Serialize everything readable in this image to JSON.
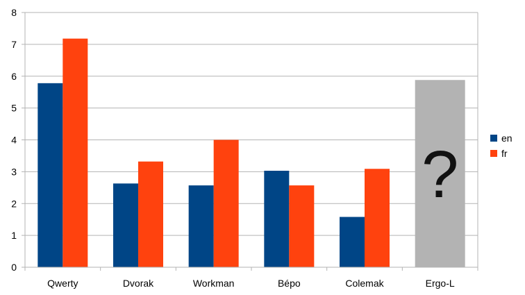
{
  "chart_data": {
    "type": "bar",
    "categories": [
      "Qwerty",
      "Dvorak",
      "Workman",
      "Bépo",
      "Colemak",
      "Ergo-L"
    ],
    "series": [
      {
        "name": "en",
        "color": "#004586",
        "values": [
          5.78,
          2.63,
          2.57,
          3.03,
          1.58,
          null
        ]
      },
      {
        "name": "fr",
        "color": "#ff420e",
        "values": [
          7.18,
          3.32,
          4.0,
          2.57,
          3.09,
          null
        ]
      }
    ],
    "unknown_bar": {
      "category": "Ergo-L",
      "value": 5.88,
      "color": "#b3b3b3",
      "label": "?"
    },
    "ylim": [
      0,
      8
    ],
    "yticks": [
      "0",
      "1",
      "2",
      "3",
      "4",
      "5",
      "6",
      "7",
      "8"
    ],
    "grid": true,
    "legend_position": "right",
    "title": "",
    "xlabel": "",
    "ylabel": ""
  }
}
